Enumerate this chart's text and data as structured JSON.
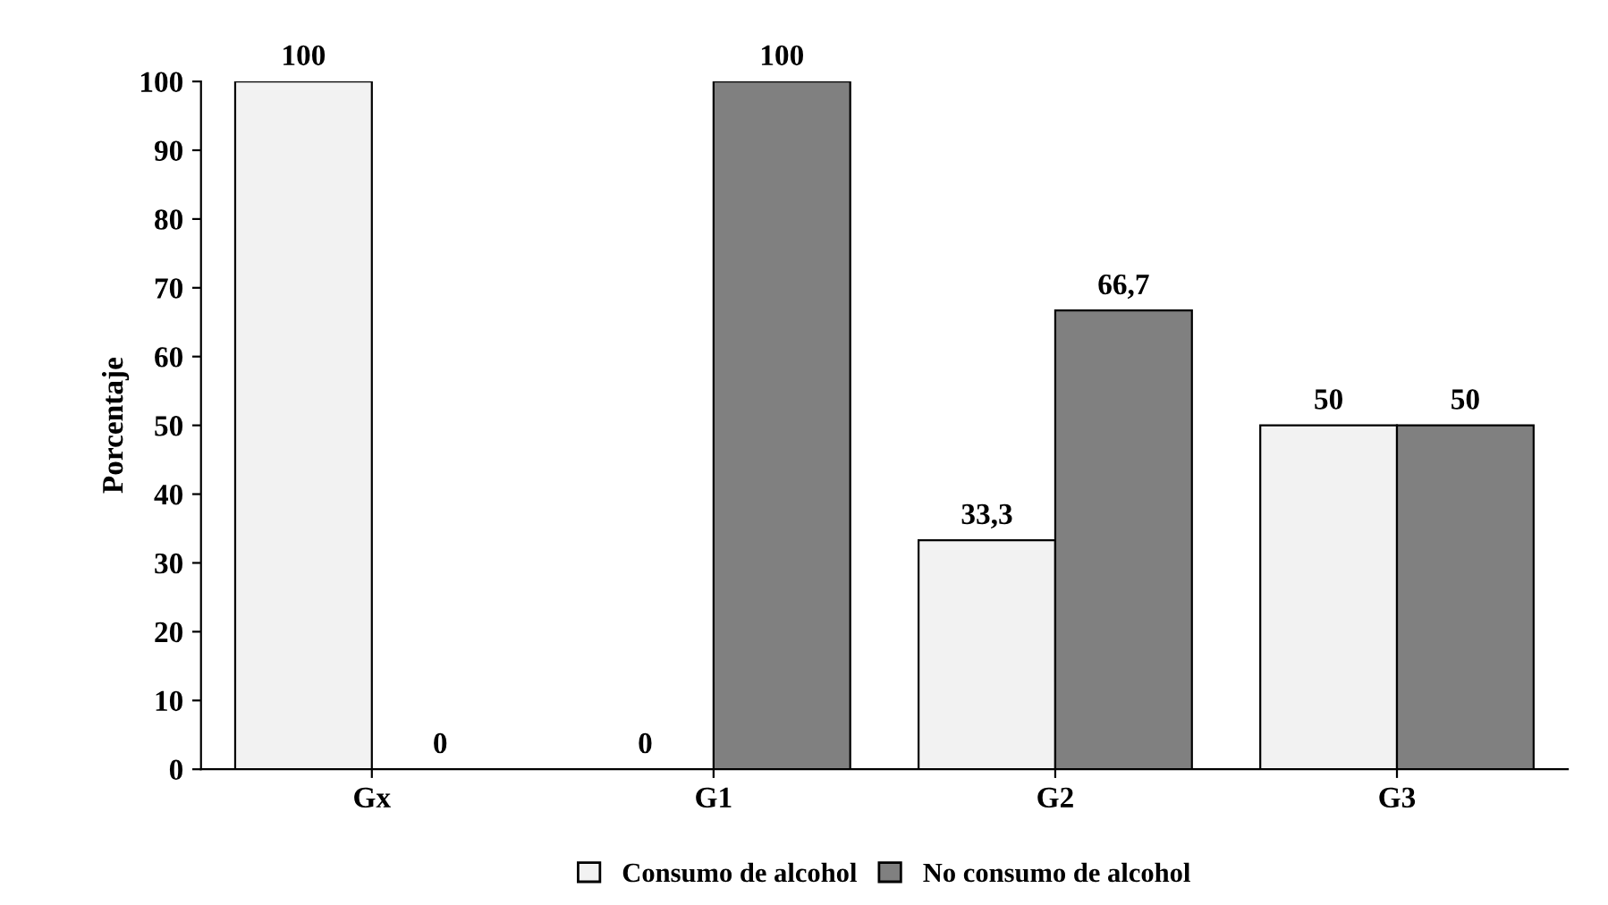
{
  "chart_data": {
    "type": "bar",
    "ylabel": "Porcentaje",
    "categories": [
      "Gx",
      "G1",
      "G2",
      "G3"
    ],
    "series": [
      {
        "name": "Consumo de alcohol",
        "color": "#f2f2f2",
        "values": [
          100,
          0,
          33.3,
          50
        ],
        "value_labels": [
          "100",
          "0",
          "33,3",
          "50"
        ]
      },
      {
        "name": "No consumo de alcohol",
        "color": "#808080",
        "values": [
          0,
          100,
          66.7,
          50
        ],
        "value_labels": [
          "0",
          "100",
          "66,7",
          "50"
        ]
      }
    ],
    "ylim": [
      0,
      100
    ],
    "yticks": [
      0,
      10,
      20,
      30,
      40,
      50,
      60,
      70,
      80,
      90,
      100
    ],
    "grid": false,
    "legend": "bottom"
  }
}
